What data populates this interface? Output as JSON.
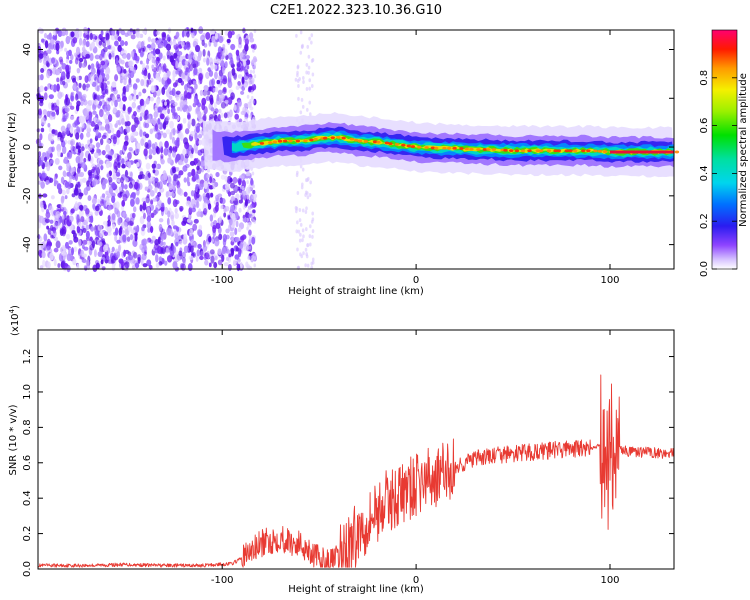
{
  "title": "C2E1.2022.323.10.36.G10",
  "chart_data": [
    {
      "type": "heatmap",
      "title": "C2E1.2022.323.10.36.G10",
      "xlabel": "Height of straight line (km)",
      "ylabel": "Frequency (Hz)",
      "xlim": [
        -195,
        133
      ],
      "ylim": [
        -50,
        48
      ],
      "x_ticks": [
        -100,
        0,
        100
      ],
      "y_ticks": [
        -40,
        -20,
        0,
        20,
        40
      ],
      "grid": false,
      "colorbar": {
        "label": "Normalized spectral amplitude",
        "range": [
          0,
          1
        ],
        "ticks": [
          0.0,
          0.2,
          0.4,
          0.6,
          0.8
        ]
      },
      "ridge": {
        "x": [
          -110,
          -95,
          -80,
          -70,
          -60,
          -50,
          -40,
          -30,
          -20,
          -10,
          0,
          10,
          20,
          30,
          40,
          50,
          60,
          70,
          80,
          90,
          100,
          110,
          120,
          133
        ],
        "y": [
          1,
          0,
          1.5,
          2.5,
          2.5,
          3.5,
          4,
          2.5,
          2,
          1,
          0,
          -0.5,
          -0.5,
          -1,
          -1,
          -1.5,
          -1.5,
          -1.5,
          -1.5,
          -1.5,
          -2,
          -2,
          -2,
          -2
        ]
      }
    },
    {
      "type": "line",
      "xlabel": "Height of straight line (km)",
      "ylabel": "SNR (10 * v/v)",
      "y_multiplier": "(x10",
      "y_exponent": "4",
      "y_multiplier_close": ")",
      "xlim": [
        -195,
        133
      ],
      "ylim": [
        0,
        1.35
      ],
      "x_ticks": [
        -100,
        0,
        100
      ],
      "y_ticks": [
        0.0,
        0.2,
        0.4,
        0.6,
        0.8,
        1.0,
        1.2
      ],
      "grid": false,
      "series": [
        {
          "color": "#e83a32",
          "x": [
            -195,
            -170,
            -150,
            -130,
            -110,
            -95,
            -90,
            -85,
            -80,
            -75,
            -70,
            -65,
            -60,
            -55,
            -50,
            -45,
            -40,
            -38,
            -35,
            -30,
            -25,
            -20,
            -15,
            -10,
            -5,
            0,
            5,
            10,
            15,
            20,
            25,
            30,
            40,
            50,
            60,
            70,
            80,
            90,
            95,
            98,
            100,
            102,
            105,
            110,
            120,
            133
          ],
          "y": [
            0.02,
            0.02,
            0.025,
            0.02,
            0.02,
            0.03,
            0.06,
            0.1,
            0.14,
            0.16,
            0.18,
            0.15,
            0.14,
            0.11,
            0.05,
            0.03,
            0.06,
            0.1,
            0.14,
            0.2,
            0.28,
            0.33,
            0.38,
            0.41,
            0.44,
            0.47,
            0.5,
            0.52,
            0.54,
            0.57,
            0.6,
            0.62,
            0.64,
            0.65,
            0.66,
            0.67,
            0.68,
            0.68,
            0.7,
            0.65,
            0.65,
            0.68,
            0.68,
            0.66,
            0.66,
            0.65
          ]
        }
      ]
    }
  ]
}
